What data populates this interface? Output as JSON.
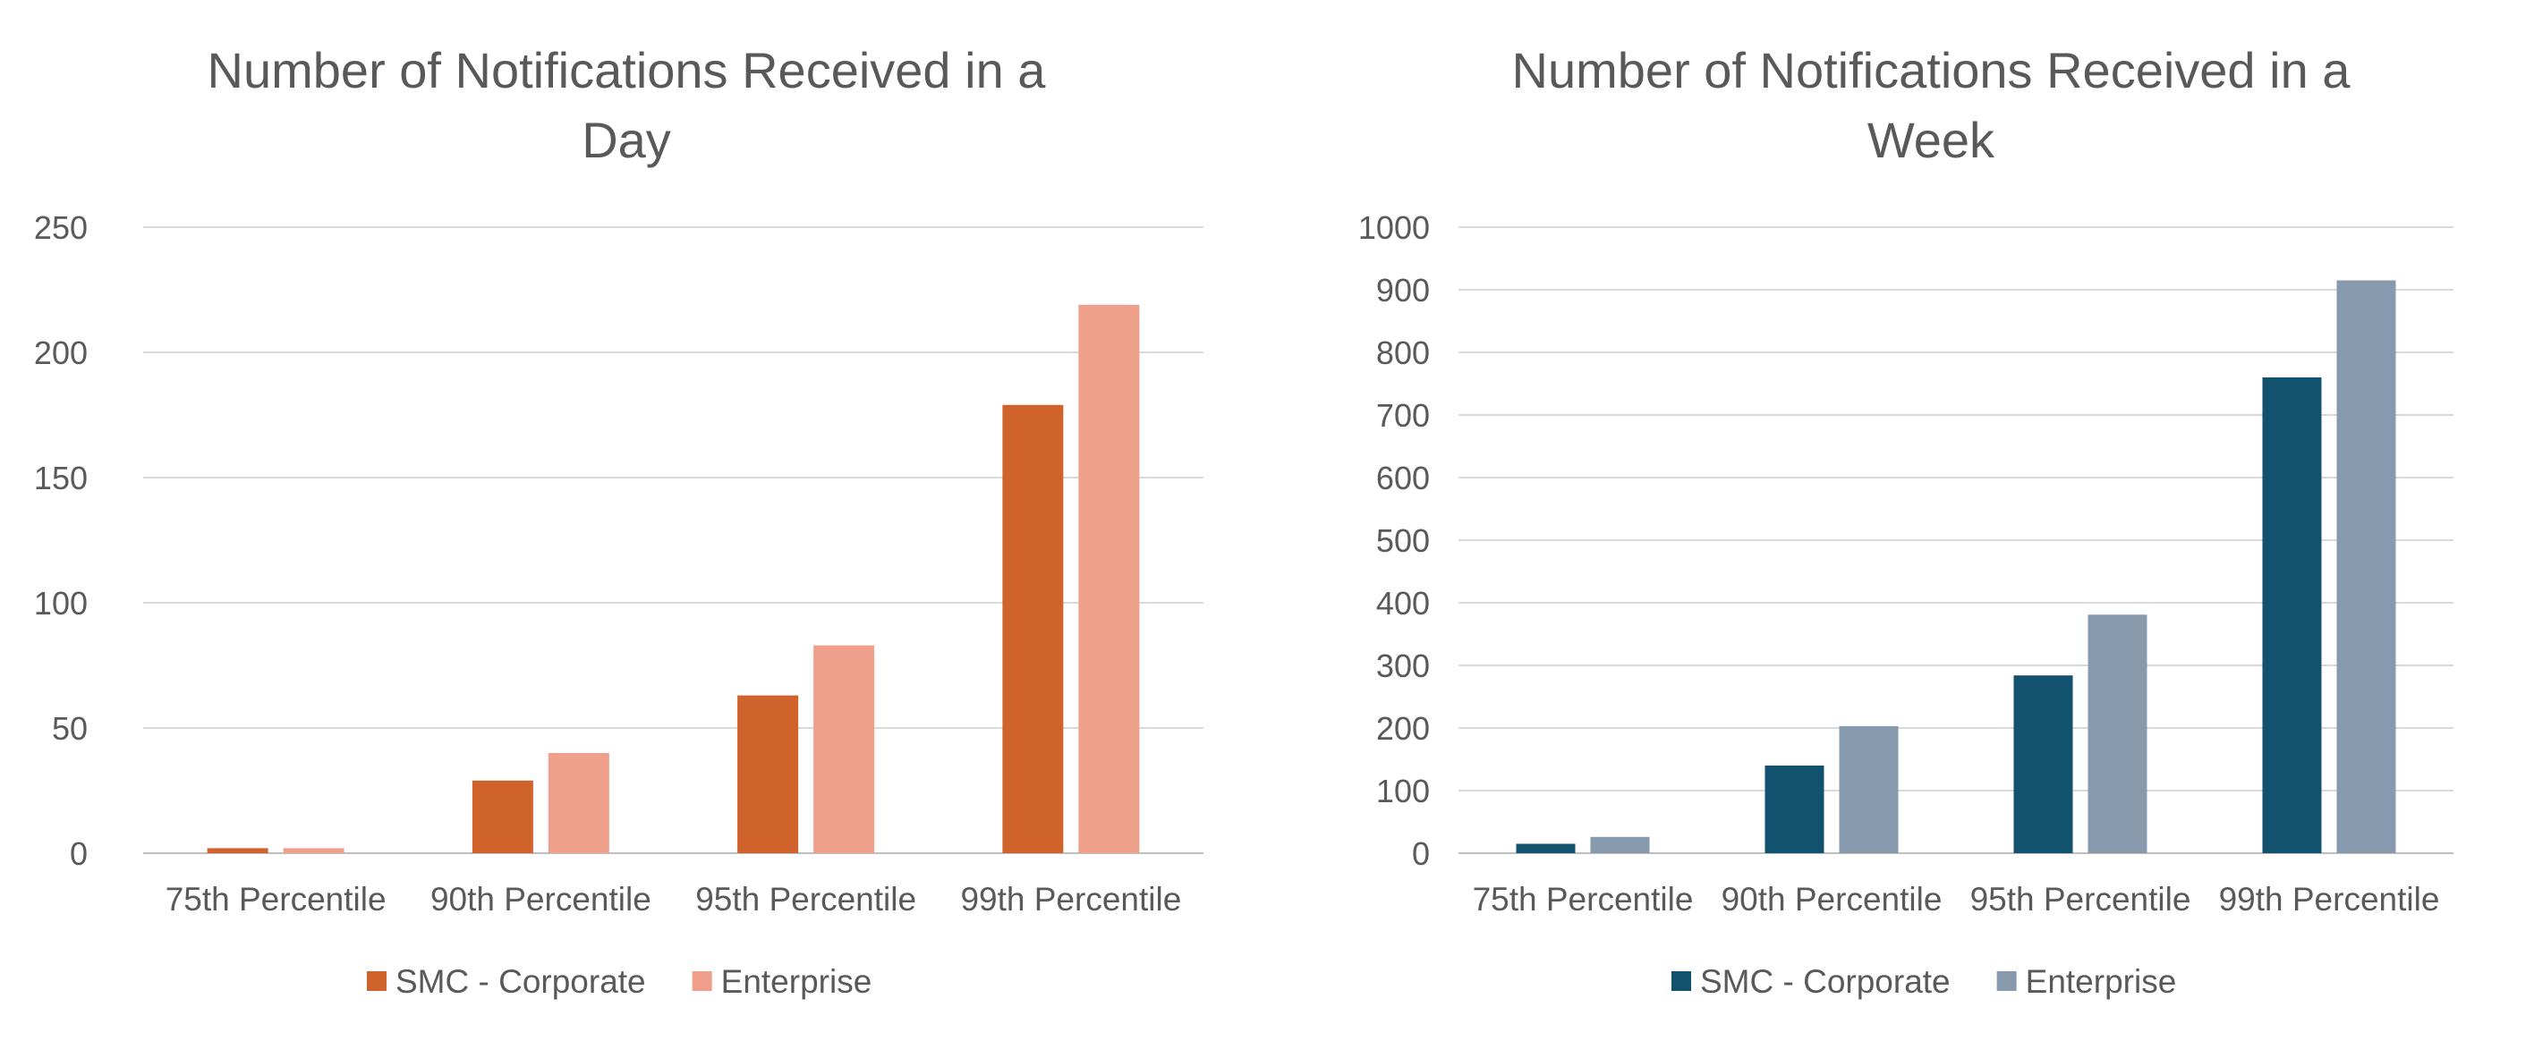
{
  "chart_data": [
    {
      "type": "bar",
      "title": [
        "Number of Notifications Received in a",
        "Day"
      ],
      "categories": [
        "75th Percentile",
        "90th Percentile",
        "95th Percentile",
        "99th Percentile"
      ],
      "series": [
        {
          "name": "SMC - Corporate",
          "color": "#d0632b",
          "values": [
            2,
            29,
            63,
            179
          ]
        },
        {
          "name": "Enterprise",
          "color": "#eea08a",
          "values": [
            2,
            40,
            83,
            219
          ]
        }
      ],
      "ylim": [
        0,
        250
      ],
      "yticks": [
        0,
        50,
        100,
        150,
        200,
        250
      ],
      "grid": true,
      "legend": "bottom"
    },
    {
      "type": "bar",
      "title": [
        "Number of Notifications Received in a",
        "Week"
      ],
      "categories": [
        "75th Percentile",
        "90th Percentile",
        "95th Percentile",
        "99th Percentile"
      ],
      "series": [
        {
          "name": "SMC - Corporate",
          "color": "#13526f",
          "values": [
            15,
            140,
            284,
            760
          ]
        },
        {
          "name": "Enterprise",
          "color": "#8799ac",
          "values": [
            26,
            203,
            381,
            915
          ]
        }
      ],
      "ylim": [
        0,
        1000
      ],
      "yticks": [
        0,
        100,
        200,
        300,
        400,
        500,
        600,
        700,
        800,
        900,
        1000
      ],
      "grid": true,
      "legend": "bottom"
    }
  ]
}
